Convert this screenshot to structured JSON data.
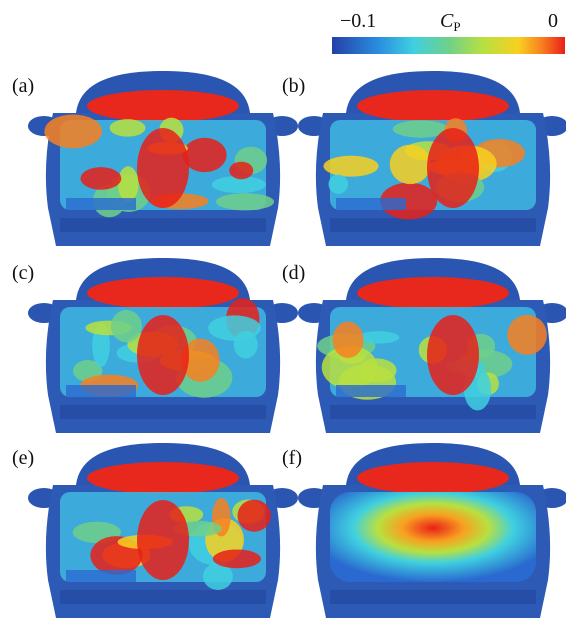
{
  "colorbar": {
    "min_label": "−0.1",
    "symbol": "C",
    "subscript": "P",
    "max_label": "0"
  },
  "panels": [
    {
      "label": "(a)"
    },
    {
      "label": "(b)"
    },
    {
      "label": "(c)"
    },
    {
      "label": "(d)"
    },
    {
      "label": "(e)"
    },
    {
      "label": "(f)"
    }
  ]
}
